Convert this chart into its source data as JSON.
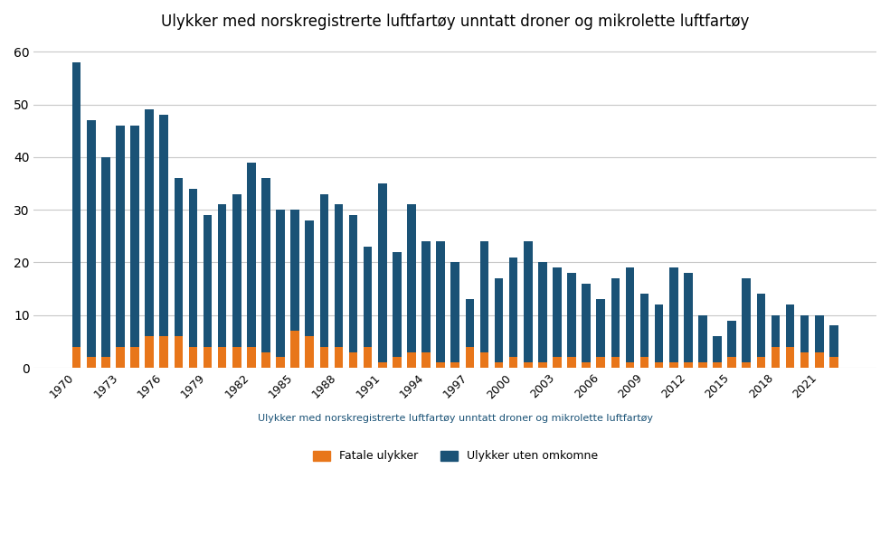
{
  "title": "Ulykker med norskregistrerte luftfartøy unntatt droner og mikrolette luftfartøy",
  "xlabel": "Ulykker med norskregistrerte luftfartøy unntatt droner og mikrolette luftfartøy",
  "legend_fatal": "Fatale ulykker",
  "legend_nonfatal": "Ulykker uten omkomne",
  "bar_color_fatal": "#E8761A",
  "bar_color_nonfatal": "#1A5276",
  "background_color": "#FFFFFF",
  "grid_color": "#C8C8C8",
  "ylim": [
    0,
    62
  ],
  "yticks": [
    0,
    10,
    20,
    30,
    40,
    50,
    60
  ],
  "years": [
    1970,
    1971,
    1972,
    1973,
    1974,
    1975,
    1976,
    1977,
    1978,
    1979,
    1980,
    1981,
    1982,
    1983,
    1984,
    1985,
    1986,
    1987,
    1988,
    1989,
    1990,
    1991,
    1992,
    1993,
    1994,
    1995,
    1996,
    1997,
    1998,
    1999,
    2000,
    2001,
    2002,
    2003,
    2004,
    2005,
    2006,
    2007,
    2008,
    2009,
    2010,
    2011,
    2012,
    2013,
    2014,
    2015,
    2016,
    2017,
    2018,
    2019,
    2020,
    2021,
    2022
  ],
  "fatal": [
    4,
    2,
    2,
    4,
    4,
    6,
    6,
    6,
    4,
    4,
    4,
    4,
    4,
    3,
    2,
    7,
    6,
    4,
    4,
    3,
    4,
    1,
    2,
    3,
    3,
    1,
    1,
    4,
    3,
    1,
    2,
    1,
    1,
    2,
    2,
    1,
    2,
    2,
    1,
    2,
    1,
    1,
    1,
    1,
    1,
    2,
    1,
    2,
    4,
    4,
    3,
    3,
    2
  ],
  "total": [
    58,
    47,
    40,
    46,
    46,
    49,
    48,
    36,
    34,
    29,
    31,
    33,
    39,
    36,
    30,
    30,
    28,
    33,
    31,
    29,
    23,
    35,
    22,
    31,
    24,
    24,
    20,
    13,
    24,
    17,
    21,
    24,
    20,
    19,
    18,
    16,
    13,
    17,
    19,
    14,
    12,
    19,
    18,
    10,
    6,
    9,
    17,
    14,
    10,
    12,
    10,
    10,
    8
  ],
  "xtick_label_years": [
    1970,
    1973,
    1976,
    1979,
    1982,
    1985,
    1988,
    1991,
    1994,
    1997,
    2000,
    2003,
    2006,
    2009,
    2012,
    2015,
    2018,
    2021
  ]
}
